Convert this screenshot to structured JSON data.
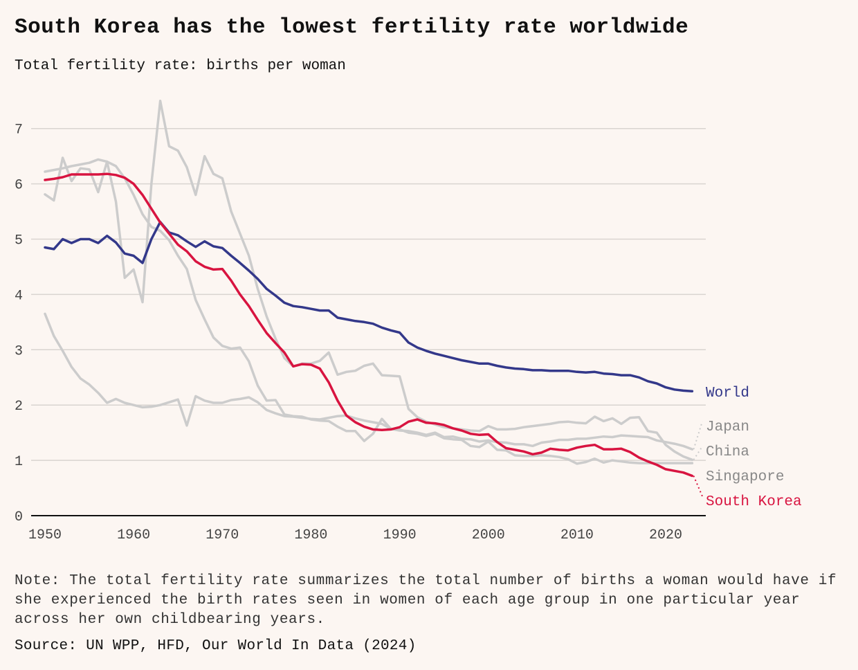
{
  "title": "South Korea has the lowest fertility rate worldwide",
  "subtitle": "Total fertility rate: births per woman",
  "note": "Note: The total fertility rate summarizes the total number of births a woman would have if she experienced the birth rates seen in women of each age group in one particular year across her own childbearing years.",
  "source": "Source: UN WPP, HFD, Our World In Data (2024)",
  "chart_data": {
    "type": "line",
    "title": "South Korea has the lowest fertility rate worldwide",
    "ylabel": "Total fertility rate: births per woman",
    "xlabel": "",
    "xlim": [
      1950,
      2023
    ],
    "ylim": [
      0,
      7.5
    ],
    "xticks": [
      1950,
      1960,
      1970,
      1980,
      1990,
      2000,
      2010,
      2020
    ],
    "yticks": [
      0,
      1,
      2,
      3,
      4,
      5,
      6,
      7
    ],
    "grid": "horizontal",
    "legend": "direct labels at right",
    "start_year": 1950,
    "series": [
      {
        "name": "Japan",
        "color": "#cccccc",
        "label_color": "#888888",
        "values": [
          3.65,
          3.25,
          2.98,
          2.69,
          2.48,
          2.37,
          2.22,
          2.04,
          2.11,
          2.04,
          2.0,
          1.96,
          1.97,
          2.0,
          2.05,
          2.1,
          1.63,
          2.16,
          2.08,
          2.04,
          2.04,
          2.09,
          2.11,
          2.14,
          2.05,
          1.91,
          1.85,
          1.8,
          1.79,
          1.77,
          1.75,
          1.74,
          1.77,
          1.8,
          1.81,
          1.76,
          1.72,
          1.69,
          1.66,
          1.57,
          1.54,
          1.53,
          1.5,
          1.46,
          1.5,
          1.42,
          1.43,
          1.39,
          1.38,
          1.34,
          1.36,
          1.33,
          1.32,
          1.29,
          1.29,
          1.26,
          1.32,
          1.34,
          1.37,
          1.37,
          1.39,
          1.39,
          1.41,
          1.43,
          1.42,
          1.45,
          1.44,
          1.43,
          1.42,
          1.36,
          1.33,
          1.3,
          1.26,
          1.2
        ]
      },
      {
        "name": "China",
        "color": "#cccccc",
        "label_color": "#888888",
        "values": [
          5.81,
          5.7,
          6.47,
          6.05,
          6.28,
          6.26,
          5.85,
          6.4,
          5.68,
          4.3,
          4.45,
          3.86,
          6.0,
          7.5,
          6.68,
          6.6,
          6.3,
          5.8,
          6.5,
          6.18,
          6.1,
          5.5,
          5.1,
          4.7,
          4.1,
          3.6,
          3.2,
          2.85,
          2.7,
          2.75,
          2.75,
          2.8,
          2.95,
          2.55,
          2.6,
          2.62,
          2.71,
          2.75,
          2.54,
          2.53,
          2.52,
          1.93,
          1.78,
          1.7,
          1.65,
          1.6,
          1.58,
          1.56,
          1.54,
          1.53,
          1.62,
          1.56,
          1.56,
          1.57,
          1.6,
          1.62,
          1.64,
          1.66,
          1.69,
          1.7,
          1.68,
          1.67,
          1.79,
          1.71,
          1.76,
          1.66,
          1.77,
          1.78,
          1.53,
          1.5,
          1.28,
          1.16,
          1.07,
          1.01
        ]
      },
      {
        "name": "Singapore",
        "color": "#cccccc",
        "label_color": "#888888",
        "values": [
          6.22,
          6.25,
          6.28,
          6.32,
          6.35,
          6.38,
          6.44,
          6.4,
          6.32,
          6.1,
          5.8,
          5.45,
          5.22,
          5.15,
          4.98,
          4.7,
          4.46,
          3.9,
          3.55,
          3.22,
          3.07,
          3.02,
          3.04,
          2.79,
          2.35,
          2.08,
          2.09,
          1.83,
          1.8,
          1.79,
          1.74,
          1.72,
          1.71,
          1.61,
          1.53,
          1.53,
          1.35,
          1.48,
          1.75,
          1.57,
          1.56,
          1.5,
          1.48,
          1.44,
          1.48,
          1.4,
          1.38,
          1.37,
          1.26,
          1.24,
          1.34,
          1.19,
          1.18,
          1.09,
          1.08,
          1.08,
          1.09,
          1.08,
          1.06,
          1.02,
          0.94,
          0.97,
          1.03,
          0.96,
          1.0,
          0.98,
          0.96,
          0.95,
          0.95,
          0.95,
          0.95,
          0.95,
          0.95,
          0.95
        ]
      },
      {
        "name": "World",
        "color": "#33388a",
        "label_color": "#33388a",
        "values": [
          4.85,
          4.82,
          5.0,
          4.93,
          5.0,
          5.0,
          4.93,
          5.06,
          4.94,
          4.74,
          4.7,
          4.57,
          5.0,
          5.31,
          5.12,
          5.07,
          4.96,
          4.86,
          4.96,
          4.87,
          4.84,
          4.7,
          4.57,
          4.43,
          4.28,
          4.1,
          3.98,
          3.85,
          3.79,
          3.77,
          3.74,
          3.71,
          3.71,
          3.58,
          3.55,
          3.52,
          3.5,
          3.47,
          3.4,
          3.35,
          3.31,
          3.13,
          3.04,
          2.98,
          2.93,
          2.89,
          2.85,
          2.81,
          2.78,
          2.75,
          2.75,
          2.71,
          2.68,
          2.66,
          2.65,
          2.63,
          2.63,
          2.62,
          2.62,
          2.62,
          2.6,
          2.59,
          2.6,
          2.57,
          2.56,
          2.54,
          2.54,
          2.5,
          2.43,
          2.39,
          2.32,
          2.28,
          2.26,
          2.25
        ]
      },
      {
        "name": "South Korea",
        "color": "#d81440",
        "label_color": "#d81440",
        "values": [
          6.07,
          6.09,
          6.12,
          6.17,
          6.17,
          6.17,
          6.17,
          6.18,
          6.16,
          6.11,
          6.0,
          5.8,
          5.55,
          5.3,
          5.1,
          4.9,
          4.78,
          4.6,
          4.5,
          4.45,
          4.46,
          4.25,
          4.0,
          3.79,
          3.54,
          3.3,
          3.12,
          2.95,
          2.7,
          2.74,
          2.73,
          2.66,
          2.41,
          2.08,
          1.81,
          1.69,
          1.61,
          1.56,
          1.55,
          1.56,
          1.6,
          1.7,
          1.74,
          1.68,
          1.67,
          1.64,
          1.58,
          1.54,
          1.48,
          1.46,
          1.47,
          1.33,
          1.22,
          1.19,
          1.16,
          1.11,
          1.14,
          1.21,
          1.19,
          1.18,
          1.23,
          1.26,
          1.28,
          1.2,
          1.2,
          1.21,
          1.15,
          1.05,
          0.98,
          0.92,
          0.84,
          0.81,
          0.78,
          0.72
        ]
      }
    ]
  }
}
